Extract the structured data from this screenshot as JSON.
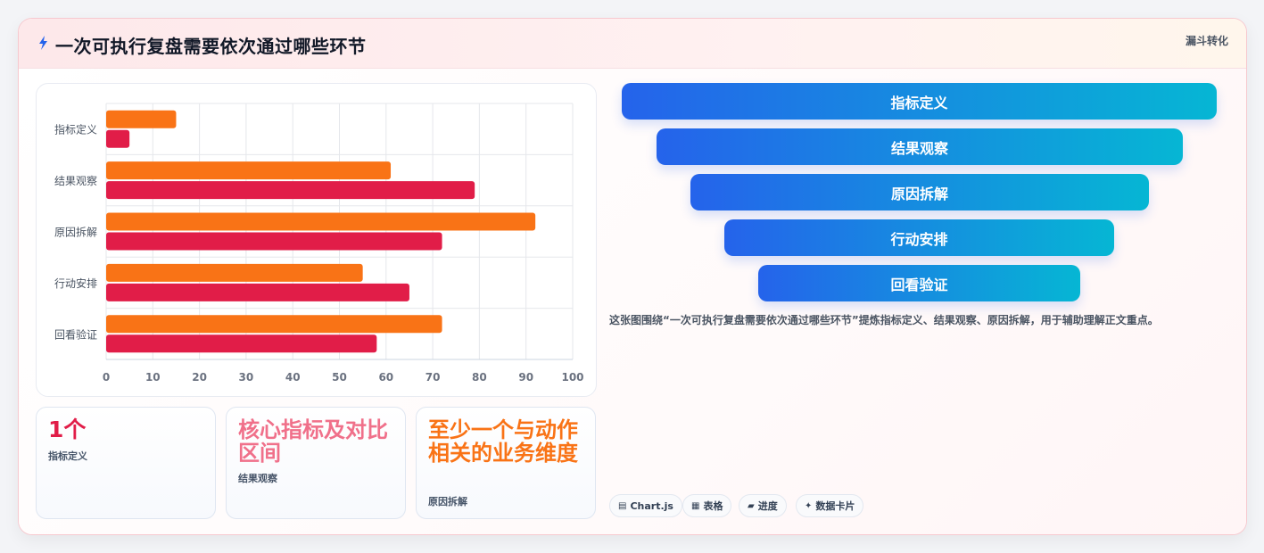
{
  "header": {
    "title": "一次可执行复盘需要依次通过哪些环节",
    "tag": "漏斗转化"
  },
  "chart_data": {
    "type": "bar",
    "orientation": "horizontal",
    "categories": [
      "指标定义",
      "结果观察",
      "原因拆解",
      "行动安排",
      "回看验证"
    ],
    "series": [
      {
        "values": [
          15,
          61,
          92,
          55,
          72
        ],
        "color": "#f97316"
      },
      {
        "values": [
          5,
          79,
          72,
          65,
          58
        ],
        "color": "#e11d48"
      }
    ],
    "xlim": [
      0,
      100
    ],
    "xticks": [
      0,
      10,
      20,
      30,
      40,
      50,
      60,
      70,
      80,
      90,
      100
    ],
    "grid": true,
    "legend": "none"
  },
  "stats": [
    {
      "value": "1个",
      "label": "指标定义",
      "color": "#e11d48"
    },
    {
      "value": "核心指标及对比区间",
      "label": "结果观察",
      "color": "#f0708a"
    },
    {
      "value": "至少一个与动作相关的业务维度",
      "label": "原因拆解",
      "color": "#f97316"
    }
  ],
  "funnel": [
    "指标定义",
    "结果观察",
    "原因拆解",
    "行动安排",
    "回看验证"
  ],
  "description": "这张图围绕“一次可执行复盘需要依次通过哪些环节”提炼指标定义、结果观察、原因拆解，用于辅助理解正文重点。",
  "chips": [
    {
      "icon": "chart-icon",
      "glyph": "▤",
      "label": "Chart.js"
    },
    {
      "icon": "table-icon",
      "glyph": "▦",
      "label": "表格"
    },
    {
      "icon": "progress-icon",
      "glyph": "▰",
      "label": "进度"
    },
    {
      "icon": "sparkle-icon",
      "glyph": "✦",
      "label": "数据卡片"
    }
  ]
}
